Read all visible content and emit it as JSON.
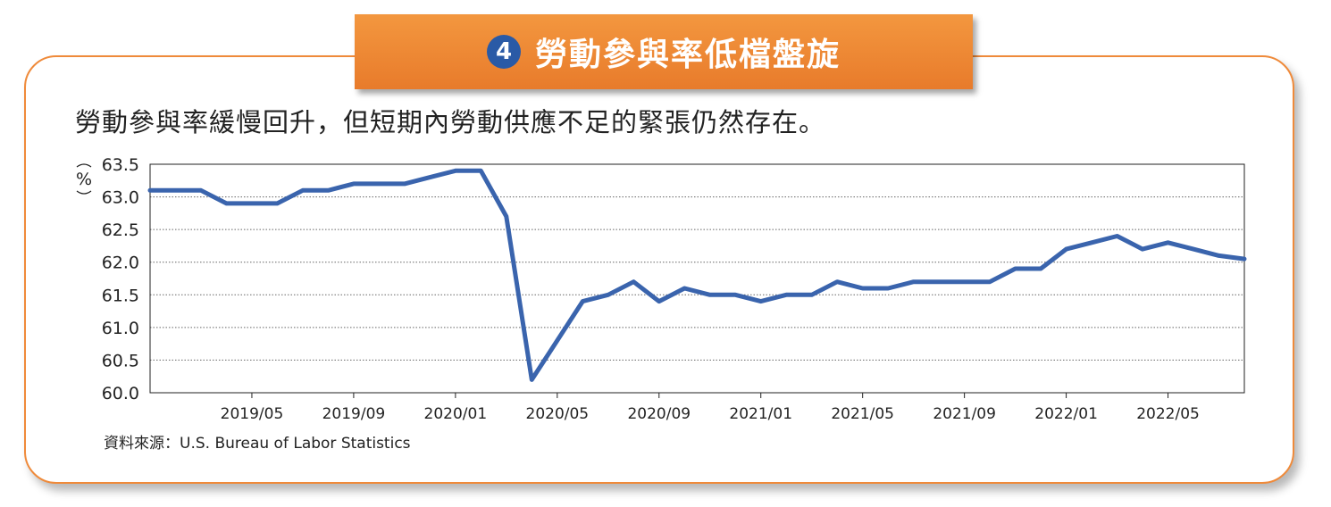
{
  "header": {
    "number": "4",
    "title": "勞動參與率低檔盤旋"
  },
  "subtitle": "勞動參與率緩慢回升，但短期內勞動供應不足的緊張仍然存在。",
  "source": "資料來源：U.S. Bureau of Labor Statistics",
  "colors": {
    "accent": "#ef8a3a",
    "line": "#3a64ad",
    "badge": "#2a5aa6"
  },
  "chart_data": {
    "type": "line",
    "title": "",
    "xlabel": "",
    "ylabel": "%",
    "ylim": [
      60.0,
      63.5
    ],
    "yticks": [
      "63.5",
      "63.0",
      "62.5",
      "62.0",
      "61.5",
      "61.0",
      "60.5",
      "60.0"
    ],
    "xticks": [
      "2019/05",
      "2019/09",
      "2020/01",
      "2020/05",
      "2020/09",
      "2021/01",
      "2021/05",
      "2021/09",
      "2022/01",
      "2022/05"
    ],
    "grid": "horizontal-dotted",
    "x": [
      "2019/01",
      "2019/02",
      "2019/03",
      "2019/04",
      "2019/05",
      "2019/06",
      "2019/07",
      "2019/08",
      "2019/09",
      "2019/10",
      "2019/11",
      "2019/12",
      "2020/01",
      "2020/02",
      "2020/03",
      "2020/04",
      "2020/05",
      "2020/06",
      "2020/07",
      "2020/08",
      "2020/09",
      "2020/10",
      "2020/11",
      "2020/12",
      "2021/01",
      "2021/02",
      "2021/03",
      "2021/04",
      "2021/05",
      "2021/06",
      "2021/07",
      "2021/08",
      "2021/09",
      "2021/10",
      "2021/11",
      "2021/12",
      "2022/01",
      "2022/02",
      "2022/03",
      "2022/04",
      "2022/05",
      "2022/06",
      "2022/07",
      "2022/08"
    ],
    "series": [
      {
        "values": [
          63.1,
          63.1,
          63.1,
          62.9,
          62.9,
          62.9,
          63.1,
          63.1,
          63.2,
          63.2,
          63.2,
          63.3,
          63.4,
          63.4,
          62.7,
          60.2,
          60.8,
          61.4,
          61.5,
          61.7,
          61.4,
          61.6,
          61.5,
          61.5,
          61.4,
          61.5,
          61.5,
          61.7,
          61.6,
          61.6,
          61.7,
          61.7,
          61.7,
          61.7,
          61.9,
          61.9,
          62.2,
          62.3,
          62.4,
          62.2,
          62.3,
          62.2,
          62.1,
          62.05
        ]
      }
    ]
  }
}
